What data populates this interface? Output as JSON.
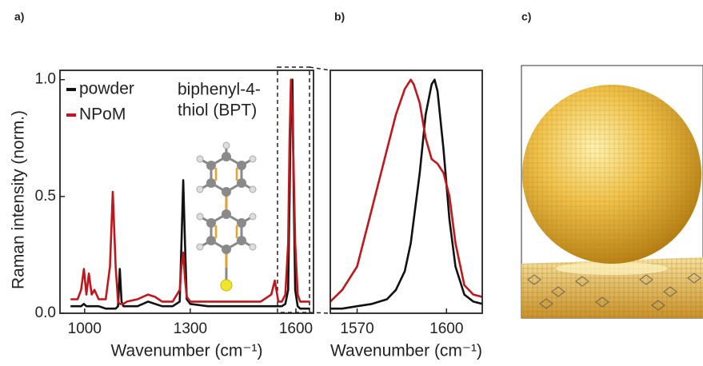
{
  "panel_labels": [
    "a)",
    "b)",
    "c)"
  ],
  "chart_data": [
    {
      "type": "line",
      "ylabel": "Raman intensity (norm.)",
      "xlabel": "Wavenumber (cm⁻¹)",
      "annotations": [
        "biphenyl-4-",
        "thiol (BPT)"
      ],
      "x": [
        960,
        980,
        990,
        998,
        1005,
        1012,
        1020,
        1028,
        1040,
        1060,
        1072,
        1080,
        1088,
        1095,
        1100,
        1105,
        1110,
        1120,
        1150,
        1180,
        1200,
        1220,
        1250,
        1270,
        1275,
        1280,
        1285,
        1290,
        1300,
        1350,
        1400,
        1450,
        1500,
        1530,
        1540,
        1550,
        1560,
        1570,
        1578,
        1582,
        1586,
        1590,
        1594,
        1598,
        1605,
        1612,
        1620,
        1640
      ],
      "series": [
        {
          "name": "powder",
          "color": "#111111",
          "values": [
            0.03,
            0.03,
            0.03,
            0.04,
            0.03,
            0.03,
            0.03,
            0.03,
            0.03,
            0.02,
            0.02,
            0.02,
            0.02,
            0.03,
            0.19,
            0.05,
            0.03,
            0.03,
            0.03,
            0.05,
            0.04,
            0.03,
            0.03,
            0.05,
            0.3,
            0.57,
            0.3,
            0.06,
            0.04,
            0.03,
            0.03,
            0.03,
            0.03,
            0.03,
            0.03,
            0.03,
            0.03,
            0.04,
            0.1,
            0.5,
            0.95,
            1.0,
            0.5,
            0.1,
            0.03,
            0.02,
            0.02,
            0.02
          ]
        },
        {
          "name": "NPoM",
          "color": "#c0171d",
          "values": [
            0.06,
            0.06,
            0.1,
            0.19,
            0.08,
            0.17,
            0.08,
            0.1,
            0.06,
            0.06,
            0.2,
            0.52,
            0.2,
            0.05,
            0.04,
            0.04,
            0.04,
            0.05,
            0.06,
            0.08,
            0.07,
            0.05,
            0.05,
            0.1,
            0.2,
            0.26,
            0.15,
            0.07,
            0.05,
            0.05,
            0.05,
            0.05,
            0.05,
            0.08,
            0.14,
            0.05,
            0.05,
            0.08,
            0.3,
            0.75,
            1.0,
            0.85,
            0.6,
            0.3,
            0.08,
            0.05,
            0.05,
            0.05
          ]
        }
      ],
      "xlim": [
        930,
        1650
      ],
      "ylim": [
        0,
        1.04
      ],
      "xticks": [
        1000,
        1300,
        1600
      ],
      "yticks": [
        {
          "value": 0,
          "label": "0.0"
        },
        0.5,
        {
          "value": 1,
          "label": "1.0"
        }
      ],
      "legend": "upper left"
    },
    {
      "type": "line",
      "xlabel": "Wavenumber (cm⁻¹)",
      "x": [
        1561,
        1565,
        1570,
        1575,
        1580,
        1583,
        1586,
        1588,
        1589,
        1591,
        1593,
        1595,
        1596,
        1597,
        1599,
        1601,
        1603,
        1606,
        1609,
        1612
      ],
      "series": [
        {
          "color": "#111111",
          "values": [
            0.02,
            0.02,
            0.03,
            0.04,
            0.06,
            0.1,
            0.18,
            0.3,
            0.4,
            0.6,
            0.85,
            0.98,
            1.0,
            0.95,
            0.7,
            0.4,
            0.2,
            0.08,
            0.05,
            0.04
          ]
        },
        {
          "color": "#c0171d",
          "values": [
            0.05,
            0.1,
            0.2,
            0.45,
            0.7,
            0.85,
            0.96,
            1.0,
            0.98,
            0.9,
            0.75,
            0.66,
            0.65,
            0.64,
            0.6,
            0.5,
            0.3,
            0.12,
            0.08,
            0.07
          ]
        }
      ],
      "xlim": [
        1561,
        1612
      ],
      "ylim": [
        0,
        1.04
      ],
      "xticks": [
        1570,
        1600
      ]
    }
  ]
}
